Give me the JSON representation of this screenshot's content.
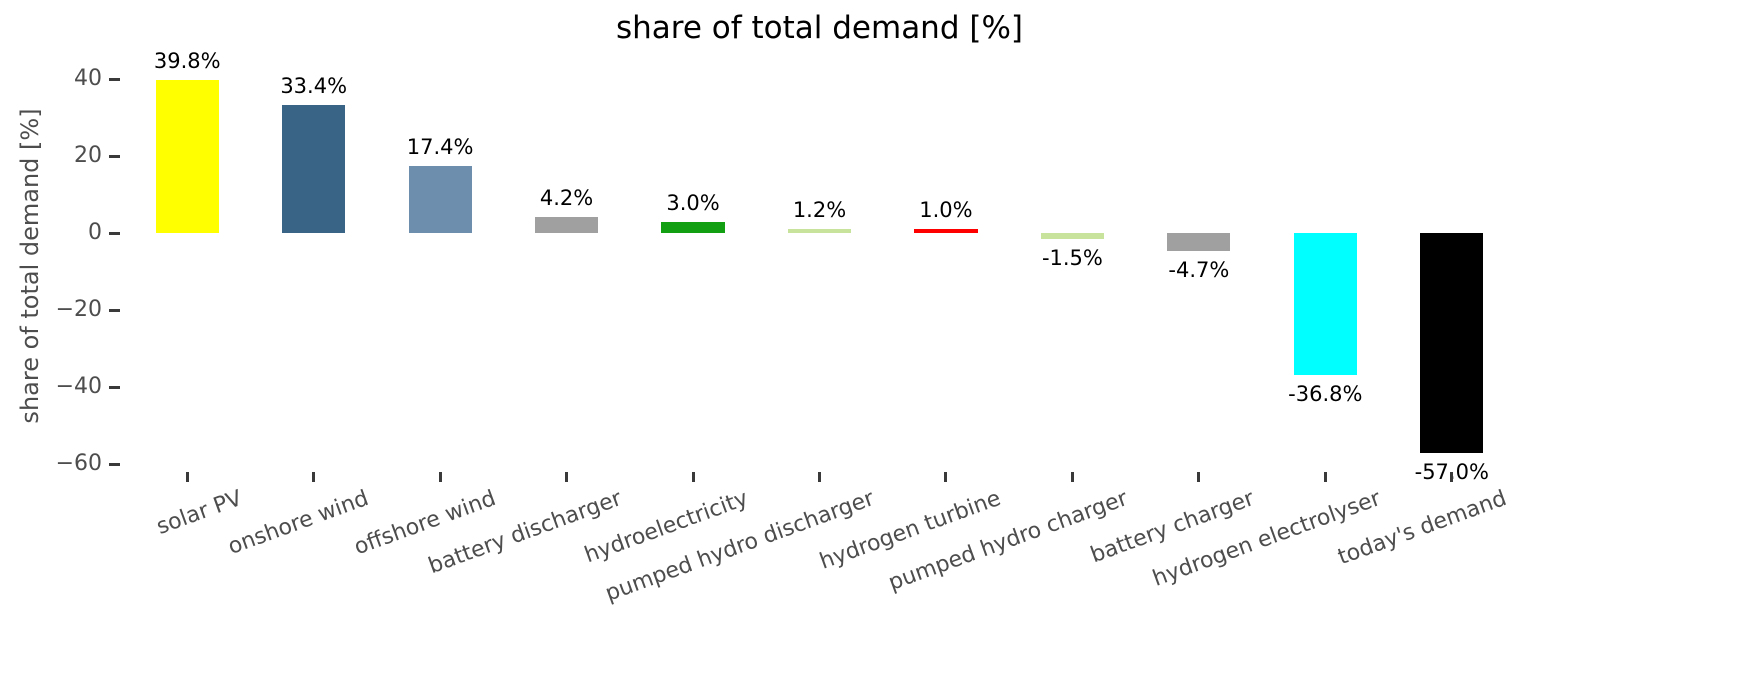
{
  "chart_data": {
    "type": "bar",
    "title": "share of total demand [%]",
    "xlabel": "",
    "ylabel": "share of total demand [%]",
    "categories": [
      "solar PV",
      "onshore wind",
      "offshore wind",
      "battery discharger",
      "hydroelectricity",
      "pumped hydro discharger",
      "hydrogen turbine",
      "pumped hydro charger",
      "battery charger",
      "hydrogen electrolyser",
      "today's demand"
    ],
    "values": [
      39.8,
      33.4,
      17.4,
      4.2,
      3.0,
      1.2,
      1.0,
      -1.5,
      -4.7,
      -36.8,
      -57.0
    ],
    "bar_labels": [
      "39.8%",
      "33.4%",
      "17.4%",
      "4.2%",
      "3.0%",
      "1.2%",
      "1.0%",
      "-1.5%",
      "-4.7%",
      "-36.8%",
      "-57.0%"
    ],
    "bar_colors": [
      "#ffff00",
      "#3a6486",
      "#6e8eae",
      "#a0a0a0",
      "#12a012",
      "#c8e49c",
      "#ff0000",
      "#c8e49c",
      "#a0a0a0",
      "#00ffff",
      "#000000"
    ],
    "yticks": [
      {
        "value": 40,
        "label": "40"
      },
      {
        "value": 20,
        "label": "20"
      },
      {
        "value": 0,
        "label": "0"
      },
      {
        "value": -20,
        "label": "−20"
      },
      {
        "value": -40,
        "label": "−40"
      },
      {
        "value": -60,
        "label": "−60"
      }
    ],
    "ylim": [
      -62,
      45
    ],
    "grid": false,
    "legend": "none",
    "axis_text_color": "#4d4d4d",
    "tick_color": "#3a3a3a",
    "value_label_color": "#000000"
  }
}
